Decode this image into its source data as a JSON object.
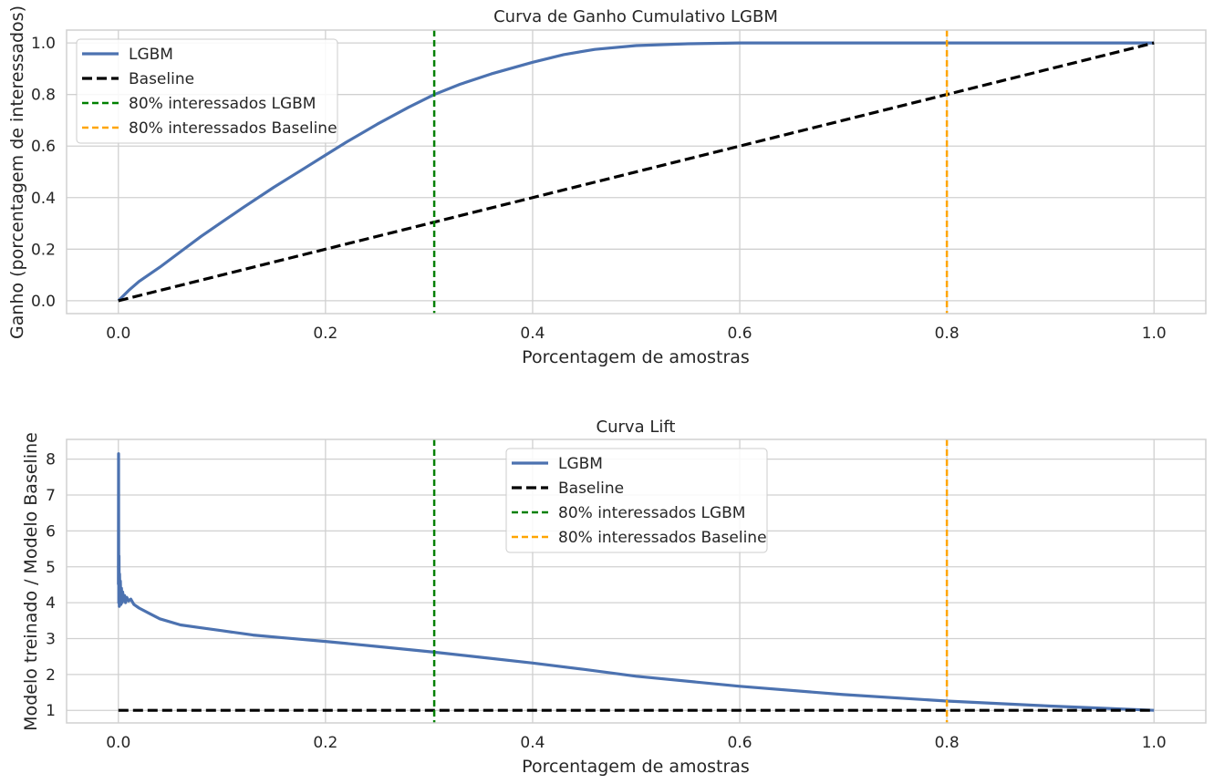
{
  "colors": {
    "lgbm": "#4c72b0",
    "baseline": "#000000",
    "vline_lgbm": "#008000",
    "vline_baseline": "#ffa500",
    "grid": "#d0d0d0"
  },
  "chart_data": [
    {
      "type": "line",
      "title": "Curva de Ganho Cumulativo LGBM",
      "xlabel": "Porcentagem de amostras",
      "ylabel": "Ganho (porcentagem de interessados)",
      "xlim": [
        -0.05,
        1.05
      ],
      "ylim": [
        -0.05,
        1.05
      ],
      "xticks": [
        0.0,
        0.2,
        0.4,
        0.6,
        0.8,
        1.0
      ],
      "xtick_labels": [
        "0.0",
        "0.2",
        "0.4",
        "0.6",
        "0.8",
        "1.0"
      ],
      "yticks": [
        0.0,
        0.2,
        0.4,
        0.6,
        0.8,
        1.0
      ],
      "ytick_labels": [
        "0.0",
        "0.2",
        "0.4",
        "0.6",
        "0.8",
        "1.0"
      ],
      "grid": true,
      "legend_position": "upper left",
      "series": [
        {
          "name": "LGBM",
          "style": "solid",
          "color_key": "lgbm",
          "x": [
            0,
            0.01,
            0.02,
            0.04,
            0.06,
            0.08,
            0.1,
            0.12,
            0.15,
            0.18,
            0.2,
            0.22,
            0.25,
            0.28,
            0.305,
            0.33,
            0.36,
            0.4,
            0.43,
            0.46,
            0.5,
            0.55,
            0.6,
            0.7,
            0.8,
            0.9,
            1.0
          ],
          "y": [
            0,
            0.04,
            0.075,
            0.13,
            0.19,
            0.25,
            0.305,
            0.36,
            0.44,
            0.515,
            0.565,
            0.615,
            0.685,
            0.75,
            0.8,
            0.84,
            0.88,
            0.925,
            0.955,
            0.975,
            0.99,
            0.997,
            1.0,
            1.0,
            1.0,
            1.0,
            1.0
          ]
        },
        {
          "name": "Baseline",
          "style": "dashed",
          "color_key": "baseline",
          "x": [
            0,
            1
          ],
          "y": [
            0,
            1
          ]
        }
      ],
      "vlines": [
        {
          "name": "80% interessados LGBM",
          "x": 0.305,
          "color_key": "vline_lgbm"
        },
        {
          "name": "80% interessados Baseline",
          "x": 0.8,
          "color_key": "vline_baseline"
        }
      ]
    },
    {
      "type": "line",
      "title": "Curva Lift",
      "xlabel": "Porcentagem de amostras",
      "ylabel": "Modelo treinado / Modelo Baseline",
      "xlim": [
        -0.05,
        1.05
      ],
      "ylim": [
        0.65,
        8.55
      ],
      "xticks": [
        0.0,
        0.2,
        0.4,
        0.6,
        0.8,
        1.0
      ],
      "xtick_labels": [
        "0.0",
        "0.2",
        "0.4",
        "0.6",
        "0.8",
        "1.0"
      ],
      "yticks": [
        1,
        2,
        3,
        4,
        5,
        6,
        7,
        8
      ],
      "ytick_labels": [
        "1",
        "2",
        "3",
        "4",
        "5",
        "6",
        "7",
        "8"
      ],
      "grid": true,
      "legend_position": "upper center",
      "series": [
        {
          "name": "LGBM",
          "style": "solid",
          "color_key": "lgbm",
          "x": [
            0,
            0.0002,
            0.0004,
            0.0006,
            0.0009,
            0.0012,
            0.0016,
            0.002,
            0.0025,
            0.003,
            0.0036,
            0.0042,
            0.005,
            0.006,
            0.007,
            0.008,
            0.01,
            0.012,
            0.015,
            0.02,
            0.03,
            0.04,
            0.06,
            0.08,
            0.1,
            0.13,
            0.16,
            0.2,
            0.25,
            0.305,
            0.35,
            0.4,
            0.45,
            0.5,
            0.6,
            0.7,
            0.8,
            0.9,
            1.0
          ],
          "y": [
            4.5,
            8.15,
            4.0,
            5.3,
            3.9,
            4.8,
            4.1,
            4.6,
            3.95,
            4.4,
            4.0,
            4.3,
            4.05,
            4.2,
            4.0,
            4.15,
            4.05,
            4.1,
            3.95,
            3.85,
            3.7,
            3.55,
            3.38,
            3.3,
            3.22,
            3.1,
            3.02,
            2.92,
            2.78,
            2.62,
            2.48,
            2.32,
            2.14,
            1.95,
            1.67,
            1.44,
            1.26,
            1.12,
            1.0
          ]
        },
        {
          "name": "Baseline",
          "style": "dashed",
          "color_key": "baseline",
          "x": [
            0,
            1
          ],
          "y": [
            1,
            1
          ]
        }
      ],
      "vlines": [
        {
          "name": "80% interessados LGBM",
          "x": 0.305,
          "color_key": "vline_lgbm"
        },
        {
          "name": "80% interessados Baseline",
          "x": 0.8,
          "color_key": "vline_baseline"
        }
      ]
    }
  ]
}
